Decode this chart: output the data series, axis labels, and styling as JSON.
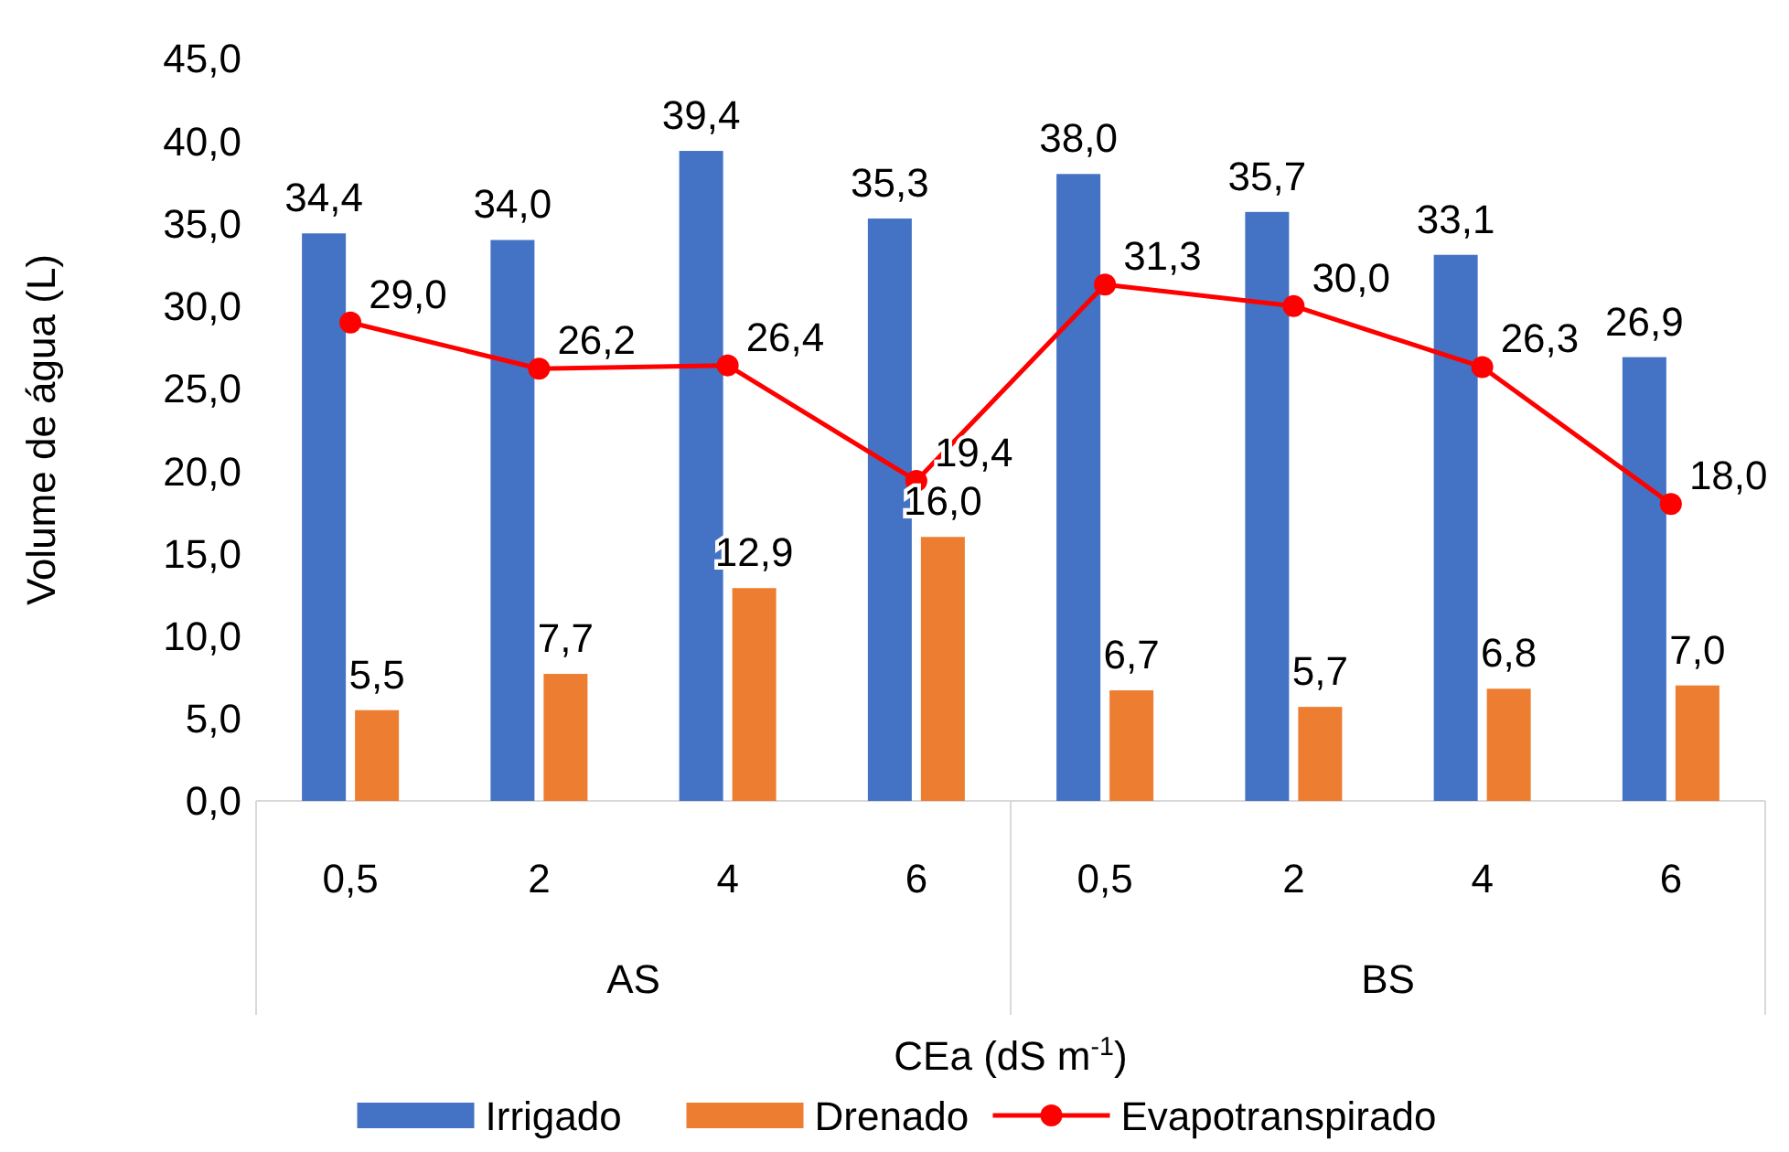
{
  "chart_data": {
    "type": "bar",
    "xlabel": "CEa (dS m$^{-1}$)",
    "ylabel": "Volume de água (L)",
    "categories": [
      "0,5",
      "2",
      "4",
      "6",
      "0,5",
      "2",
      "4",
      "6"
    ],
    "annotations": [
      "AS",
      "BS"
    ],
    "ylim": [
      0,
      45
    ],
    "yticks": [
      {
        "value": 0,
        "label": "0,0"
      },
      {
        "value": 5,
        "label": "5,0"
      },
      {
        "value": 10,
        "label": "10,0"
      },
      {
        "value": 15,
        "label": "15,0"
      },
      {
        "value": 20,
        "label": "20,0"
      },
      {
        "value": 25,
        "label": "25,0"
      },
      {
        "value": 30,
        "label": "30,0"
      },
      {
        "value": 35,
        "label": "35,0"
      },
      {
        "value": 40,
        "label": "40,0"
      },
      {
        "value": 45,
        "label": "45,0"
      }
    ],
    "legend": "bottom",
    "grid": false,
    "series": [
      {
        "name": "Irrigado",
        "color": "#4472c4",
        "values": [
          34.4,
          34.0,
          39.4,
          35.3,
          38.0,
          35.7,
          33.1,
          26.9
        ],
        "value_labels": [
          "34,4",
          "34,0",
          "39,4",
          "35,3",
          "38,0",
          "35,7",
          "33,1",
          "26,9"
        ]
      },
      {
        "name": "Drenado",
        "color": "#ed7d31",
        "values": [
          5.5,
          7.7,
          12.9,
          16.0,
          6.7,
          5.7,
          6.8,
          7.0
        ],
        "value_labels": [
          "5,5",
          "7,7",
          "12,9",
          "16,0",
          "6,7",
          "5,7",
          "6,8",
          "7,0"
        ]
      },
      {
        "name": "Evapotranspirado",
        "type": "line",
        "color": "#ff0000",
        "marker": "circle",
        "values": [
          29.0,
          26.2,
          26.4,
          19.4,
          31.3,
          30.0,
          26.3,
          18.0
        ],
        "value_labels": [
          "29,0",
          "26,2",
          "26,4",
          "19,4",
          "31,3",
          "30,0",
          "26,3",
          "18,0"
        ]
      }
    ]
  }
}
